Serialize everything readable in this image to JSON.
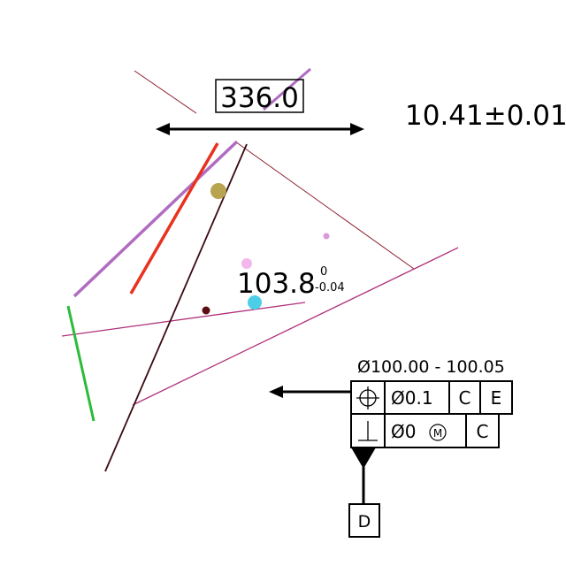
{
  "dimensions": {
    "boxed_basic": "336.0",
    "tolerance_text": "10.41±0.01",
    "toleranced_value": {
      "nominal": "103.8",
      "upper": "0",
      "lower": "-0.04"
    },
    "diameter_range": "Ø100.00 - 100.05"
  },
  "feature_control_frame": {
    "row1": {
      "symbol": "⌖",
      "tolerance": "Ø0.1",
      "datum_primary": "C",
      "datum_secondary": "E"
    },
    "row2": {
      "symbol": "⊥",
      "tolerance": "Ø0",
      "modifier": "Ⓜ",
      "datum_primary": "C"
    }
  },
  "datum_feature": {
    "label": "D"
  },
  "colors": {
    "ink": "#000000",
    "dark_maroon": "#3a0a12",
    "thin_maroon": "#8a1a2a",
    "magenta": "#b0307a",
    "violet": "#b06cc0",
    "red": "#e8321e",
    "green": "#2dbb3a",
    "olive_dot": "#b8a450",
    "cyan_dot": "#4ccfe6",
    "pink_dot": "#f2b8ee",
    "lilac_dot": "#d89ad8",
    "maroon_dot": "#5a0d12"
  }
}
